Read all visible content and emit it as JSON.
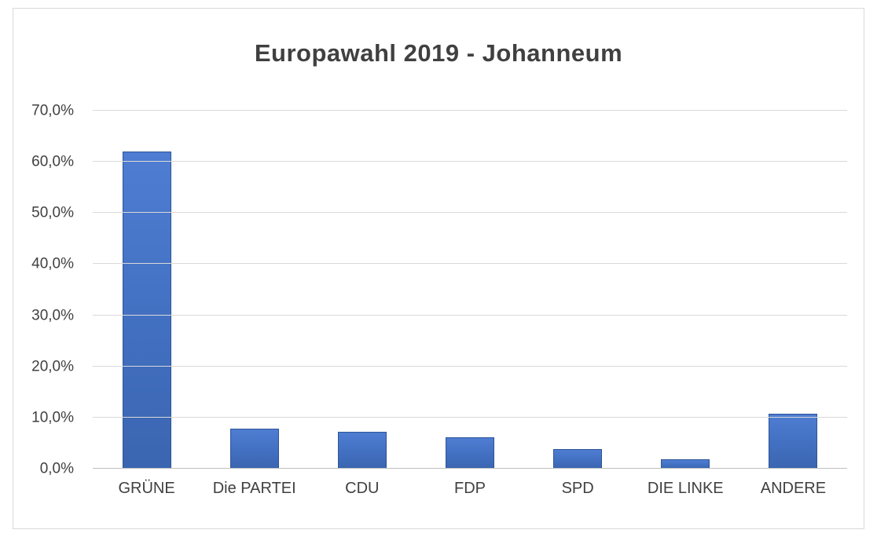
{
  "chart_data": {
    "type": "bar",
    "title": "Europawahl 2019 - Johanneum",
    "categories": [
      "GRÜNE",
      "Die PARTEI",
      "CDU",
      "FDP",
      "SPD",
      "DIE LINKE",
      "ANDERE"
    ],
    "values": [
      62.0,
      7.9,
      7.2,
      6.1,
      3.9,
      1.8,
      10.7
    ],
    "ylabel": "",
    "xlabel": "",
    "ylim": [
      0,
      70
    ],
    "ytick_step": 10,
    "ytick_labels": [
      "0,0%",
      "10,0%",
      "20,0%",
      "30,0%",
      "40,0%",
      "50,0%",
      "60,0%",
      "70,0%"
    ],
    "grid": true,
    "legend": false,
    "colors": {
      "bar_fill_top": "#4e7dd2",
      "bar_fill_mid": "#4472c4",
      "bar_fill_bottom": "#3a65b0",
      "bar_border": "#2f5597",
      "gridline": "#d9d9d9",
      "axis_line": "#bfbfbf",
      "text": "#404040"
    }
  }
}
